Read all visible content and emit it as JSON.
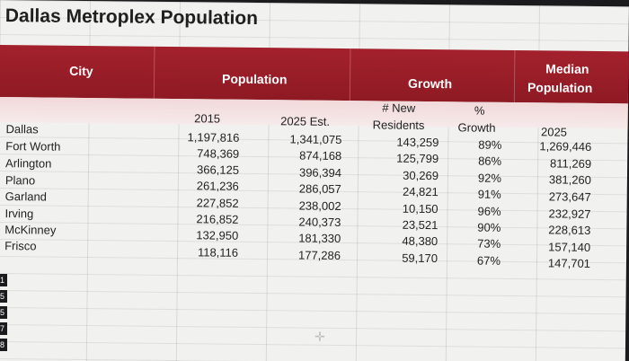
{
  "title": "Dallas Metroplex Population",
  "headers": {
    "city": "City",
    "population": "Population",
    "growth": "Growth",
    "median": "Median",
    "median2": "Population"
  },
  "subheaders": {
    "y2015": "2015",
    "y2025": "2025 Est.",
    "new1": "# New",
    "new2": "Residents",
    "pct1": "%",
    "pct2": "Growth",
    "median2025": "2025"
  },
  "rows": [
    {
      "city": "Dallas",
      "pop2015": "1,197,816",
      "pop2025": "1,341,075",
      "new": "143,259",
      "pct": "89%",
      "median": "1,269,446"
    },
    {
      "city": "Fort Worth",
      "pop2015": "748,369",
      "pop2025": "874,168",
      "new": "125,799",
      "pct": "86%",
      "median": "811,269"
    },
    {
      "city": "Arlington",
      "pop2015": "366,125",
      "pop2025": "396,394",
      "new": "30,269",
      "pct": "92%",
      "median": "381,260"
    },
    {
      "city": "Plano",
      "pop2015": "261,236",
      "pop2025": "286,057",
      "new": "24,821",
      "pct": "91%",
      "median": "273,647"
    },
    {
      "city": "Garland",
      "pop2015": "227,852",
      "pop2025": "238,002",
      "new": "10,150",
      "pct": "96%",
      "median": "232,927"
    },
    {
      "city": "Irving",
      "pop2015": "216,852",
      "pop2025": "240,373",
      "new": "23,521",
      "pct": "90%",
      "median": "228,613"
    },
    {
      "city": "McKinney",
      "pop2015": "132,950",
      "pop2025": "181,330",
      "new": "48,380",
      "pct": "73%",
      "median": "157,140"
    },
    {
      "city": "Frisco",
      "pop2015": "118,116",
      "pop2025": "177,286",
      "new": "59,170",
      "pct": "67%",
      "median": "147,701"
    }
  ],
  "row_numbers": [
    "1",
    "5",
    "5",
    "7",
    "8"
  ],
  "colors": {
    "header": "#a3212c",
    "subheader": "#f2d9da"
  }
}
